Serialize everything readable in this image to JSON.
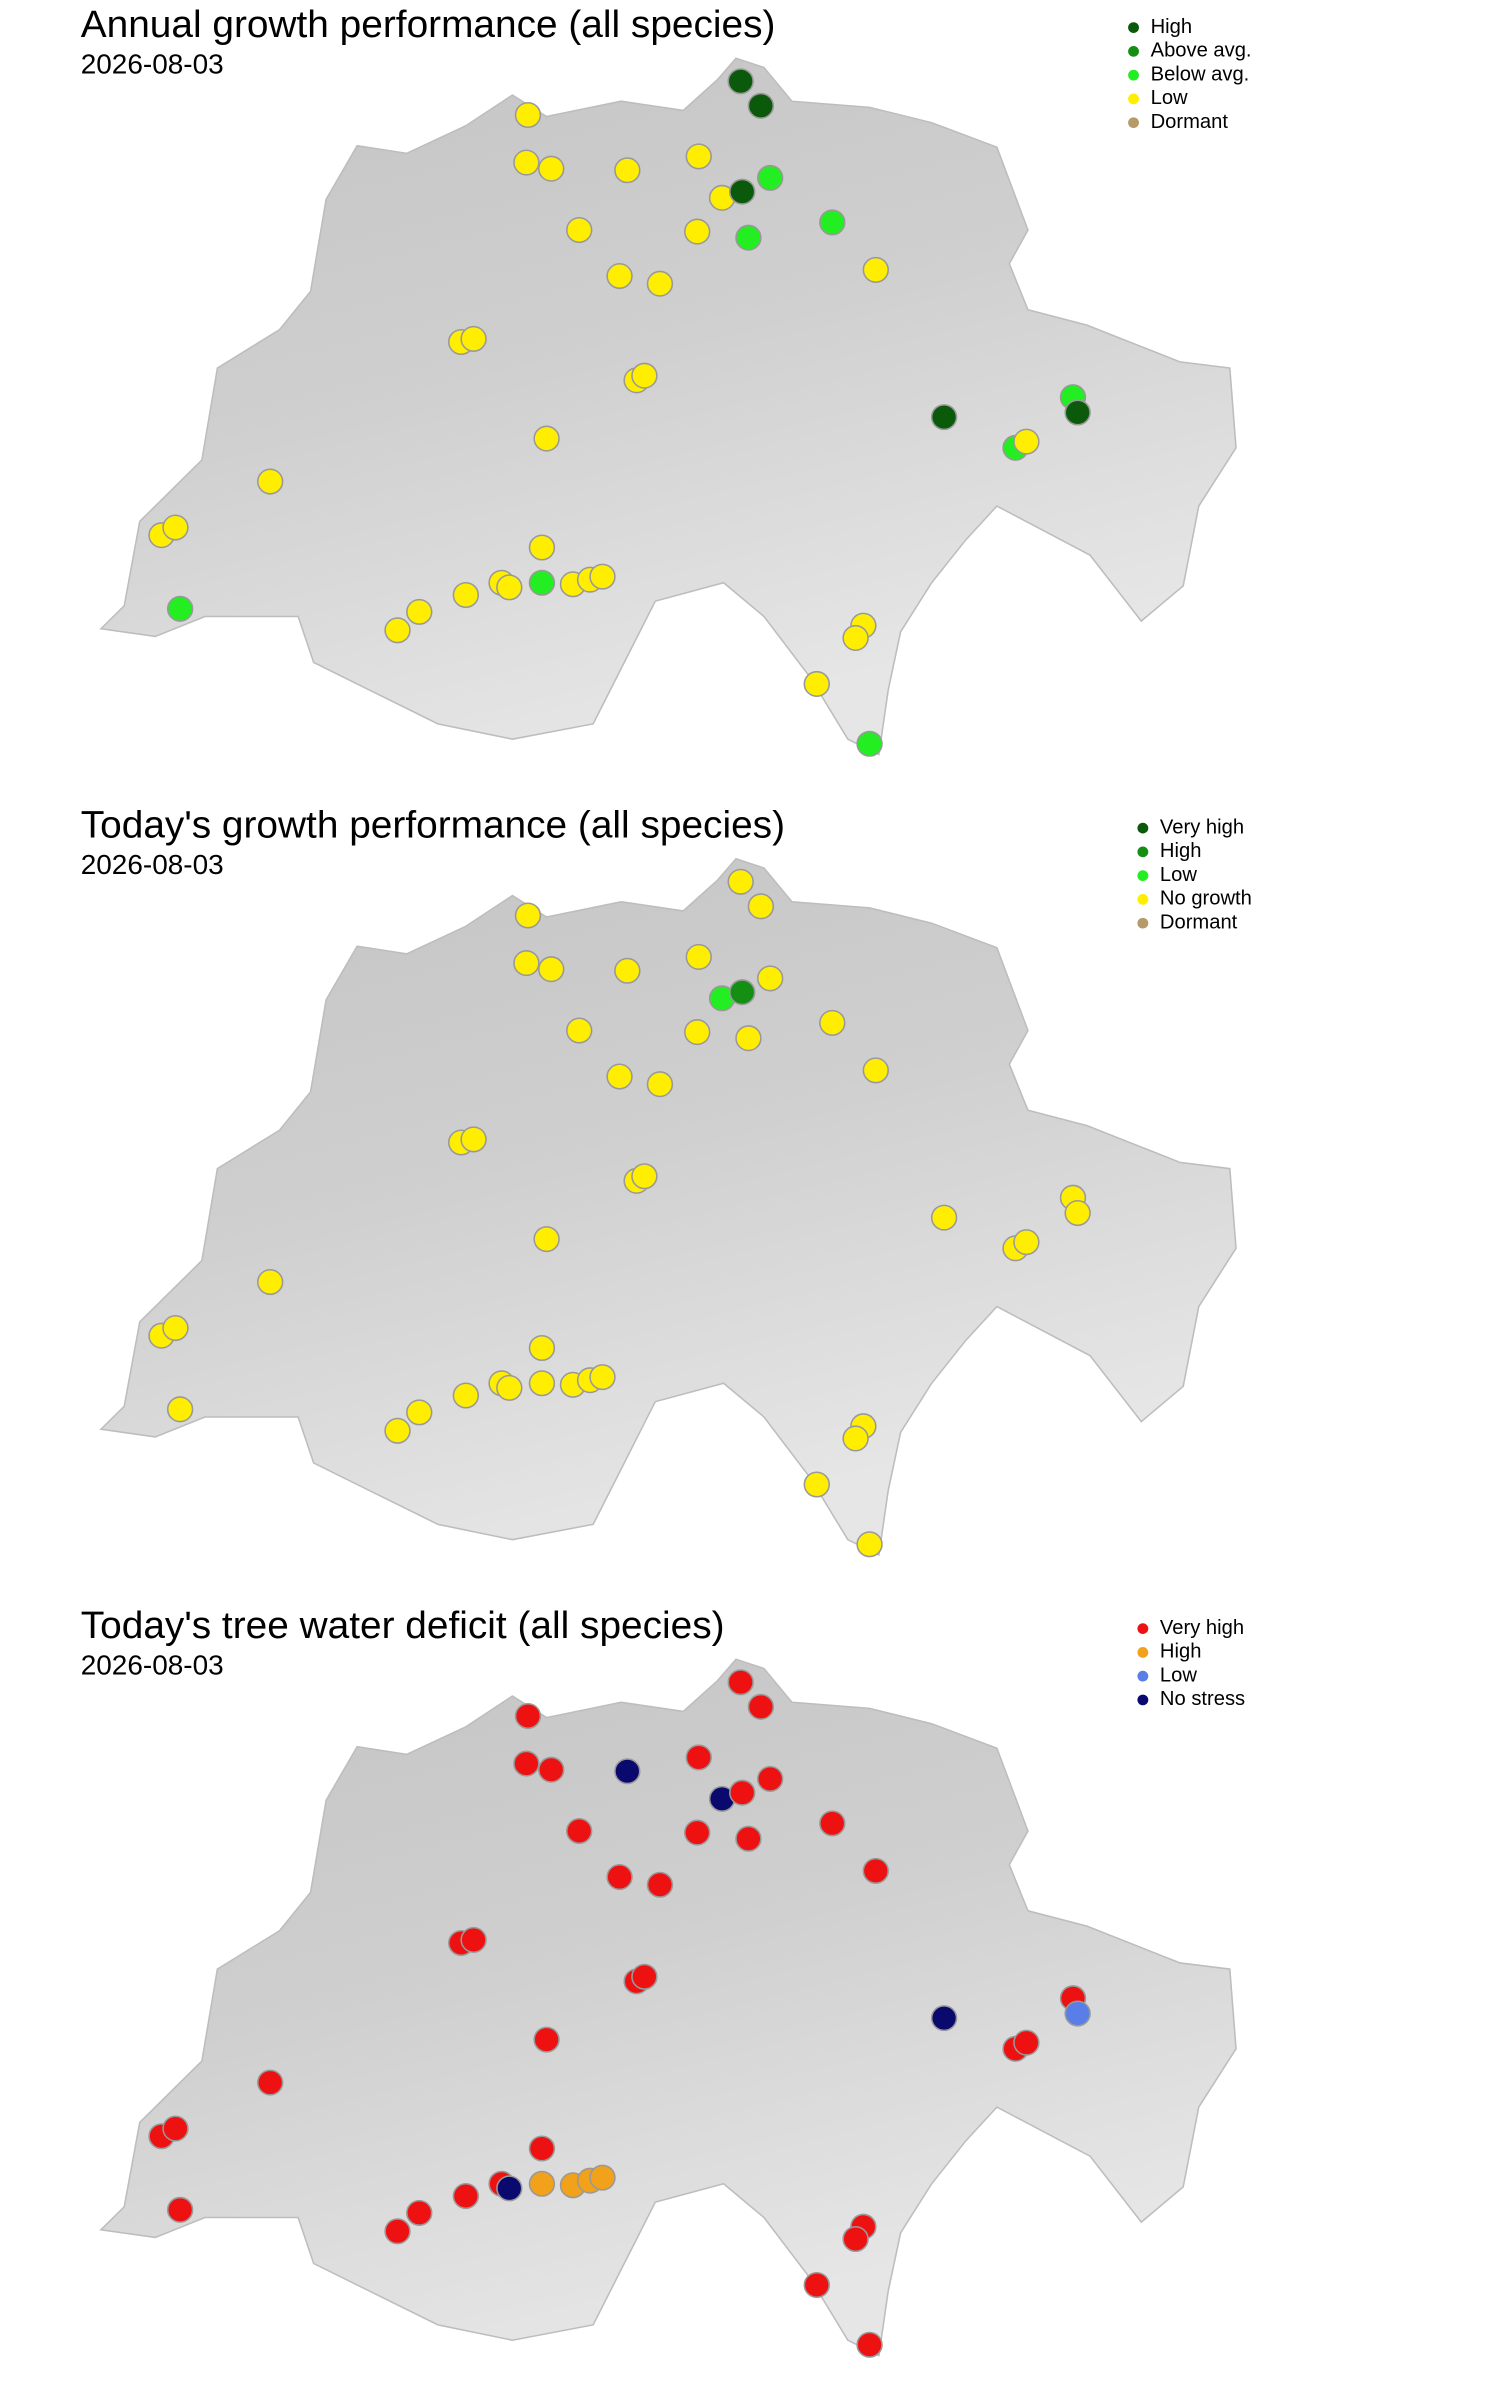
{
  "panels": [
    {
      "title": "Annual growth performance (all species)",
      "date": "2026-08-03",
      "legend": [
        {
          "label": "High",
          "color": "#0b5a0b"
        },
        {
          "label": "Above avg.",
          "color": "#148f14"
        },
        {
          "label": "Below avg.",
          "color": "#22ee22"
        },
        {
          "label": "Low",
          "color": "#ffee00"
        },
        {
          "label": "Dormant",
          "color": "#b59a6a"
        }
      ]
    },
    {
      "title": "Today's growth performance (all species)",
      "date": "2026-08-03",
      "legend": [
        {
          "label": "Very high",
          "color": "#0b5a0b"
        },
        {
          "label": "High",
          "color": "#148f14"
        },
        {
          "label": "Low",
          "color": "#22ee22"
        },
        {
          "label": "No growth",
          "color": "#ffee00"
        },
        {
          "label": "Dormant",
          "color": "#b59a6a"
        }
      ]
    },
    {
      "title": "Today's tree water deficit (all species)",
      "date": "2026-08-03",
      "legend": [
        {
          "label": "Very high",
          "color": "#ee1111"
        },
        {
          "label": "High",
          "color": "#f2a11a"
        },
        {
          "label": "Low",
          "color": "#5a7ee8"
        },
        {
          "label": "No stress",
          "color": "#0a0a6e"
        }
      ]
    }
  ]
}
